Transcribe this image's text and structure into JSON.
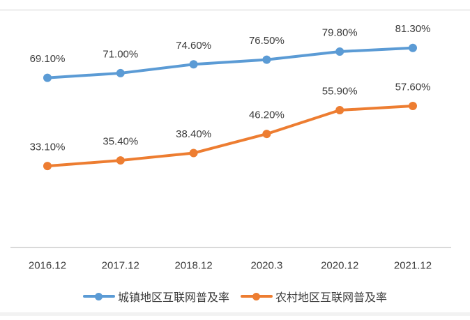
{
  "page": {
    "background": "#ffffff"
  },
  "chart_data": {
    "type": "line",
    "title": "",
    "categories": [
      "2016.12",
      "2017.12",
      "2018.12",
      "2020.3",
      "2020.12",
      "2021.12"
    ],
    "series": [
      {
        "key": "urban",
        "name": "城镇地区互联网普及率",
        "color": "#5B9BD5",
        "values": [
          69.1,
          71.0,
          74.6,
          76.5,
          79.8,
          81.3
        ],
        "point_labels": [
          "69.10%",
          "71.00%",
          "74.60%",
          "76.50%",
          "79.80%",
          "81.30%"
        ]
      },
      {
        "key": "rural",
        "name": "农村地区互联网普及率",
        "color": "#ED7D31",
        "values": [
          33.1,
          35.4,
          38.4,
          46.2,
          55.9,
          57.6
        ],
        "point_labels": [
          "33.10%",
          "35.40%",
          "38.40%",
          "46.20%",
          "55.90%",
          "57.60%"
        ]
      }
    ],
    "xlabel": "",
    "ylabel": "",
    "ylim": [
      0,
      100
    ],
    "grid": false,
    "y_axis_visible": false,
    "data_labels": true,
    "marker": "circle",
    "legend_position": "bottom",
    "axis_line_color": "#D9D9D9",
    "text_color": "#3d3d3d"
  }
}
